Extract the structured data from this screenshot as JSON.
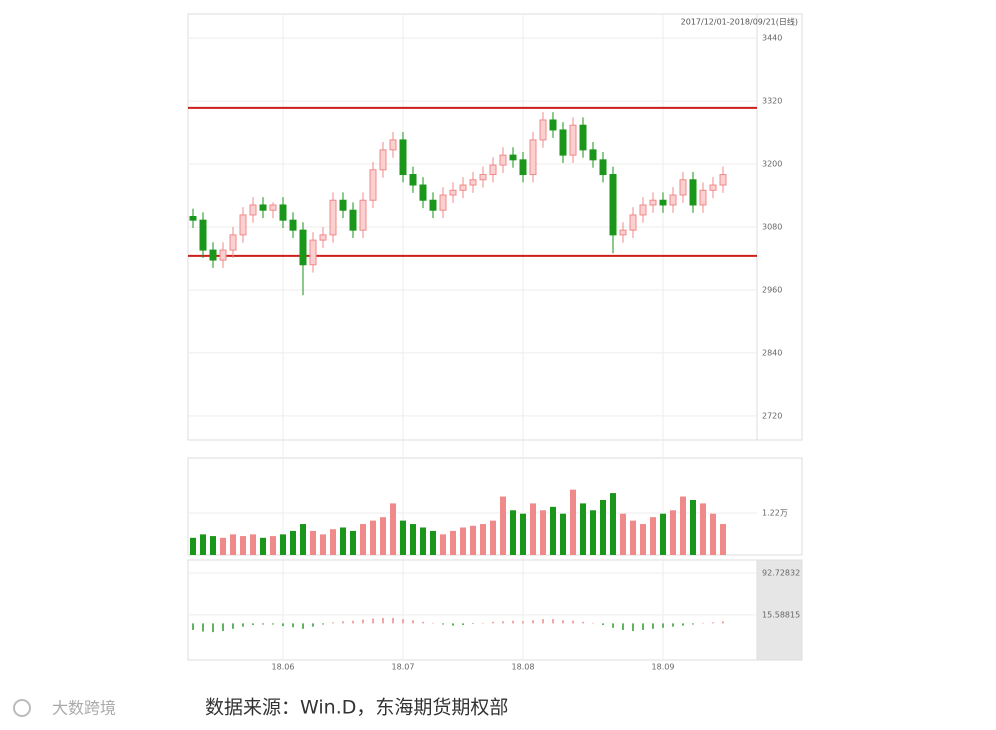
{
  "chart_data": [
    {
      "type": "candlestick",
      "title": "2017/12/01-2018/09/21(日线)",
      "categories": [
        null,
        null,
        null,
        null,
        null,
        null,
        null,
        null,
        null,
        "18.06",
        null,
        null,
        null,
        null,
        null,
        null,
        null,
        null,
        null,
        null,
        null,
        "18.07",
        null,
        null,
        null,
        null,
        null,
        null,
        null,
        null,
        null,
        null,
        null,
        "18.08",
        null,
        null,
        null,
        null,
        null,
        null,
        null,
        null,
        null,
        null,
        null,
        null,
        null,
        "18.09",
        null,
        null,
        null,
        null,
        null,
        null
      ],
      "open": [
        3100,
        3093,
        3036,
        3017,
        3036,
        3065,
        3103,
        3122,
        3112,
        3122,
        3093,
        3074,
        3008,
        3055,
        3065,
        3131,
        3112,
        3074,
        3131,
        3189,
        3227,
        3246,
        3180,
        3160,
        3131,
        3112,
        3141,
        3150,
        3160,
        3170,
        3180,
        3198,
        3217,
        3208,
        3180,
        3246,
        3284,
        3265,
        3217,
        3274,
        3227,
        3208,
        3180,
        3065,
        3074,
        3103,
        3122,
        3131,
        3122,
        3141,
        3170,
        3122,
        3150,
        3160
      ],
      "high": [
        3115,
        3108,
        3051,
        3051,
        3080,
        3118,
        3137,
        3137,
        3127,
        3137,
        3108,
        3089,
        3070,
        3080,
        3146,
        3146,
        3127,
        3146,
        3204,
        3242,
        3261,
        3261,
        3195,
        3175,
        3146,
        3156,
        3165,
        3175,
        3185,
        3195,
        3213,
        3232,
        3232,
        3223,
        3261,
        3299,
        3299,
        3280,
        3289,
        3289,
        3242,
        3223,
        3195,
        3089,
        3118,
        3137,
        3146,
        3146,
        3156,
        3185,
        3185,
        3165,
        3175,
        3195
      ],
      "low": [
        3078,
        3021,
        3002,
        3002,
        3021,
        3050,
        3088,
        3097,
        3097,
        3078,
        3059,
        2950,
        2993,
        3040,
        3050,
        3097,
        3059,
        3059,
        3116,
        3174,
        3212,
        3165,
        3145,
        3116,
        3097,
        3097,
        3126,
        3135,
        3145,
        3155,
        3165,
        3183,
        3193,
        3165,
        3165,
        3231,
        3250,
        3202,
        3202,
        3212,
        3193,
        3165,
        3030,
        3050,
        3059,
        3088,
        3107,
        3107,
        3107,
        3126,
        3107,
        3107,
        3135,
        3145
      ],
      "close": [
        3093,
        3036,
        3017,
        3036,
        3065,
        3103,
        3122,
        3112,
        3122,
        3093,
        3074,
        3008,
        3055,
        3065,
        3131,
        3112,
        3074,
        3131,
        3189,
        3227,
        3246,
        3180,
        3160,
        3131,
        3112,
        3141,
        3150,
        3160,
        3170,
        3180,
        3198,
        3217,
        3208,
        3180,
        3246,
        3284,
        3265,
        3217,
        3274,
        3227,
        3208,
        3180,
        3065,
        3074,
        3103,
        3122,
        3131,
        3122,
        3141,
        3170,
        3122,
        3150,
        3160,
        3180
      ],
      "up_color": "#f08a8a",
      "down_color": "#1a961a",
      "ylim": [
        2674,
        3486
      ],
      "yticks": [
        3440,
        3320,
        3200,
        3080,
        2960,
        2840,
        2720
      ],
      "reference_lines": [
        3307,
        3025
      ],
      "reference_color": "#cc1f1a",
      "grid": true
    },
    {
      "type": "volume",
      "values": [
        0.5,
        0.6,
        0.55,
        0.5,
        0.6,
        0.55,
        0.6,
        0.5,
        0.55,
        0.6,
        0.7,
        0.9,
        0.7,
        0.6,
        0.75,
        0.8,
        0.7,
        0.9,
        1.0,
        1.1,
        1.5,
        1.0,
        0.9,
        0.8,
        0.7,
        0.6,
        0.7,
        0.8,
        0.85,
        0.9,
        1.0,
        1.7,
        1.3,
        1.2,
        1.5,
        1.3,
        1.4,
        1.2,
        1.9,
        1.5,
        1.3,
        1.6,
        1.8,
        1.2,
        1.0,
        0.9,
        1.1,
        1.2,
        1.3,
        1.7,
        1.6,
        1.5,
        1.2,
        0.9
      ],
      "ylim": [
        0,
        2.82
      ],
      "yticks": [
        {
          "value": 1.22,
          "label": "1.22万"
        }
      ]
    },
    {
      "type": "macd",
      "values": [
        -12,
        -15,
        -16,
        -14,
        -10,
        -6,
        -3,
        -2,
        -2,
        -5,
        -7,
        -10,
        -6,
        -2,
        2,
        4,
        5,
        7,
        9,
        10,
        10,
        8,
        6,
        3,
        1,
        -2,
        -4,
        -3,
        -1,
        1,
        3,
        4,
        5,
        4,
        6,
        8,
        8,
        6,
        5,
        3,
        1,
        -3,
        -8,
        -12,
        -14,
        -12,
        -10,
        -8,
        -6,
        -4,
        -2,
        1,
        2,
        4
      ],
      "up_color": "#e88",
      "down_color": "#2a9a2a",
      "ylim": [
        -67.3,
        116.6
      ],
      "yticks": [
        92.72832,
        15.58815
      ]
    }
  ],
  "caption": "数据来源：Win.D，东海期货期权部",
  "watermark": "大数跨境"
}
